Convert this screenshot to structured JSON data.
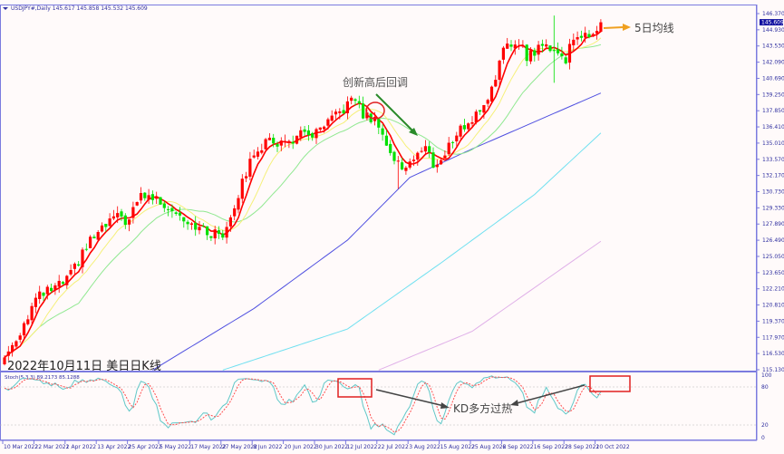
{
  "header": {
    "symbol": "USDJPY#,Daily",
    "ohlc": "145.617 145.858 145.532 145.609"
  },
  "indicator_label": "Stoch(5,3,3) 89.2173 85.1288",
  "chart_data": {
    "type": "candlestick",
    "title": "2022年10月11日 美日日K线",
    "colors": {
      "up": "#ff0000",
      "down": "#00e000",
      "ma5": "#ff0000",
      "ma10": "#f5f07a",
      "ma20": "#90e890",
      "ma60": "#5050e0",
      "ma120": "#70e0f0",
      "ma240": "#e0b0e8",
      "stoch_k": "#60c8c8",
      "stoch_d": "#ff5050",
      "axis": "#7b7bdf"
    },
    "price_axis": {
      "range": [
        115.13,
        146.37
      ],
      "ticks": [
        "146.370",
        "144.930",
        "143.530",
        "142.090",
        "140.690",
        "139.250",
        "137.850",
        "136.410",
        "135.010",
        "133.570",
        "132.170",
        "130.730",
        "129.330",
        "127.890",
        "126.490",
        "125.050",
        "123.650",
        "122.210",
        "120.810",
        "119.370",
        "117.970",
        "116.530",
        "115.130"
      ],
      "current": "145.609"
    },
    "stoch_axis": {
      "ticks": [
        "100",
        "80",
        "20",
        "0"
      ],
      "levels": [
        80,
        20
      ]
    },
    "date_labels": [
      "10 Mar 2022",
      "22 Mar 2022",
      "1 Apr 2022",
      "13 Apr 2022",
      "25 Apr 2022",
      "5 May 2022",
      "17 May 2022",
      "27 May 2022",
      "8 Jun 2022",
      "20 Jun 2022",
      "30 Jun 2022",
      "12 Jul 2022",
      "22 Jul 2022",
      "3 Aug 2022",
      "15 Aug 2022",
      "25 Aug 2022",
      "6 Sep 2022",
      "16 Sep 2022",
      "28 Sep 2022",
      "10 Oct 2022"
    ],
    "bars_between_labels": 8,
    "bar_count": 154,
    "close_path": [
      [
        0,
        116.2
      ],
      [
        4,
        118.5
      ],
      [
        8,
        121.3
      ],
      [
        10,
        121.8
      ],
      [
        14,
        122.5
      ],
      [
        16,
        123.0
      ],
      [
        18,
        124.0
      ],
      [
        22,
        126.5
      ],
      [
        24,
        127.0
      ],
      [
        28,
        128.5
      ],
      [
        32,
        128.2
      ],
      [
        35,
        130.5
      ],
      [
        38,
        130.2
      ],
      [
        42,
        129.5
      ],
      [
        46,
        128.5
      ],
      [
        48,
        128.0
      ],
      [
        52,
        127.1
      ],
      [
        56,
        127.0
      ],
      [
        60,
        130.5
      ],
      [
        64,
        134.3
      ],
      [
        68,
        135.2
      ],
      [
        72,
        135.0
      ],
      [
        76,
        135.7
      ],
      [
        80,
        135.8
      ],
      [
        84,
        137.0
      ],
      [
        88,
        138.4
      ],
      [
        90,
        138.9
      ],
      [
        92,
        137.5
      ],
      [
        96,
        136.8
      ],
      [
        99,
        134.0
      ],
      [
        102,
        132.8
      ],
      [
        104,
        133.5
      ],
      [
        108,
        134.6
      ],
      [
        110,
        133.2
      ],
      [
        112,
        133.4
      ],
      [
        116,
        136.0
      ],
      [
        120,
        137.0
      ],
      [
        124,
        139.0
      ],
      [
        128,
        143.0
      ],
      [
        130,
        143.6
      ],
      [
        132,
        144.0
      ],
      [
        134,
        142.6
      ],
      [
        138,
        143.5
      ],
      [
        140,
        143.5
      ],
      [
        144,
        142.3
      ],
      [
        146,
        144.5
      ],
      [
        148,
        144.5
      ],
      [
        150,
        144.0
      ],
      [
        152,
        145.3
      ],
      [
        153,
        145.609
      ]
    ],
    "ma60_path": [
      [
        38,
        115.1
      ],
      [
        64,
        120.5
      ],
      [
        88,
        126.5
      ],
      [
        104,
        132.0
      ],
      [
        120,
        134.5
      ],
      [
        153,
        139.4
      ]
    ],
    "ma120_path": [
      [
        56,
        115.1
      ],
      [
        88,
        118.7
      ],
      [
        112,
        124.5
      ],
      [
        136,
        130.5
      ],
      [
        153,
        135.9
      ]
    ],
    "ma240_path": [
      [
        96,
        115.1
      ],
      [
        120,
        118.5
      ],
      [
        153,
        126.4
      ]
    ]
  },
  "annotations": {
    "pullback": "创新高后回调",
    "ma5": "5日均线",
    "kd": "KD多方过热"
  }
}
